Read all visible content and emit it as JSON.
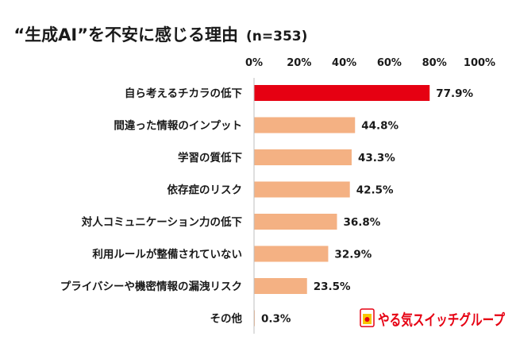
{
  "chart_data": {
    "type": "bar",
    "orientation": "horizontal",
    "title": "“生成AI”を不安に感じる理由",
    "subtitle": "(n=353)",
    "categories": [
      "自ら考えるチカラの低下",
      "間違った情報のインプット",
      "学習の質低下",
      "依存症のリスク",
      "対人コミュニケーション力の低下",
      "利用ルールが整備されていない",
      "プライバシーや機密情報の漏洩リスク",
      "その他"
    ],
    "values": [
      77.9,
      44.8,
      43.3,
      42.5,
      36.8,
      32.9,
      23.5,
      0.3
    ],
    "value_labels": [
      "77.9%",
      "44.8%",
      "43.3%",
      "42.5%",
      "36.8%",
      "32.9%",
      "23.5%",
      "0.3%"
    ],
    "xlim": [
      0,
      100
    ],
    "x_ticks": [
      "0%",
      "20%",
      "40%",
      "60%",
      "80%",
      "100%"
    ],
    "x_tick_values": [
      0,
      20,
      40,
      60,
      80,
      100
    ],
    "grid": false,
    "colors": {
      "highlight": "#e60012",
      "default": "#f4b183",
      "axis": "#bfbfbf"
    }
  },
  "logo": {
    "text": "やる気スイッチグループ",
    "color": "#e60012"
  }
}
